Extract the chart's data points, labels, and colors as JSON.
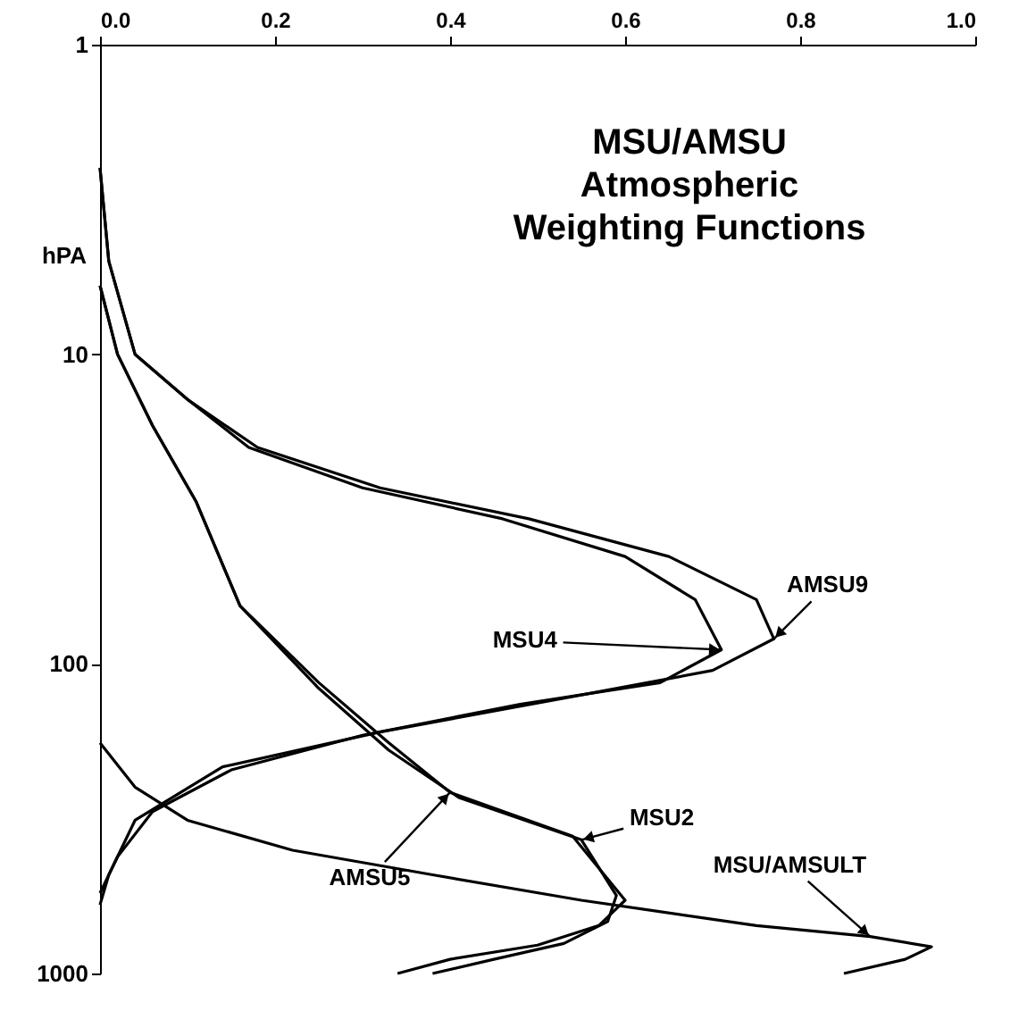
{
  "chart_data": {
    "type": "line",
    "title": "MSU/AMSU\nAtmospheric\nWeighting Functions",
    "ylabel": "hPA",
    "log": "y",
    "xlim": [
      0,
      1
    ],
    "ylim": [
      1000,
      1
    ],
    "xticks": [
      {
        "value": 0,
        "label": "0.0"
      },
      0.2,
      0.4,
      0.6,
      0.8,
      {
        "value": 1,
        "label": "1.0"
      }
    ],
    "yticks": [
      1,
      10,
      100,
      {
        "value": 1000,
        "label": "1000"
      }
    ],
    "grid": false,
    "legend": false,
    "line_style": "solid",
    "marker": "none",
    "series": [
      {
        "color": "#000000",
        "x": [
          0,
          0.01,
          0.04,
          0.1,
          0.18,
          0.32,
          0.49,
          0.65,
          0.75,
          0.77,
          0.7,
          0.55,
          0.32,
          0.14,
          0.04,
          0.01,
          0
        ],
        "values": [
          2.5,
          5,
          10,
          14,
          20,
          27,
          34,
          45,
          62,
          83,
          105,
          126,
          166,
          215,
          320,
          480,
          600
        ]
      },
      {
        "color": "#000000",
        "x": [
          0,
          0.01,
          0.04,
          0.1,
          0.17,
          0.3,
          0.46,
          0.6,
          0.68,
          0.71,
          0.64,
          0.48,
          0.3,
          0.15,
          0.06,
          0.02,
          0
        ],
        "values": [
          2.5,
          5,
          10,
          14,
          20,
          27,
          34,
          45,
          62,
          90,
          115,
          135,
          170,
          220,
          300,
          420,
          550
        ]
      },
      {
        "color": "#000000",
        "x": [
          0,
          0.02,
          0.06,
          0.11,
          0.16,
          0.25,
          0.33,
          0.41,
          0.55,
          0.59,
          0.58,
          0.53,
          0.45,
          0.38
        ],
        "values": [
          6,
          10,
          17,
          30,
          65,
          120,
          190,
          270,
          370,
          560,
          680,
          800,
          900,
          1000
        ]
      },
      {
        "color": "#000000",
        "x": [
          0,
          0.02,
          0.06,
          0.11,
          0.16,
          0.25,
          0.33,
          0.4,
          0.54,
          0.6,
          0.57,
          0.5,
          0.4,
          0.34
        ],
        "values": [
          6,
          10,
          17,
          30,
          65,
          115,
          180,
          260,
          360,
          580,
          700,
          810,
          900,
          1000
        ]
      },
      {
        "color": "#000000",
        "x": [
          0,
          0.04,
          0.1,
          0.22,
          0.38,
          0.55,
          0.75,
          0.88,
          0.95,
          0.92,
          0.85
        ],
        "values": [
          180,
          250,
          320,
          400,
          480,
          580,
          700,
          760,
          820,
          900,
          1000
        ]
      }
    ],
    "annotations": [
      {
        "text": "AMSU9",
        "x": 0.77,
        "y": 83
      },
      {
        "text": "MSU4",
        "x": 0.71,
        "y": 90
      },
      {
        "text": "MSU2",
        "x": 0.55,
        "y": 370
      },
      {
        "text": "AMSU5",
        "x": 0.4,
        "y": 260
      },
      {
        "text": "MSU/AMSULT",
        "x": 0.88,
        "y": 760
      }
    ]
  }
}
